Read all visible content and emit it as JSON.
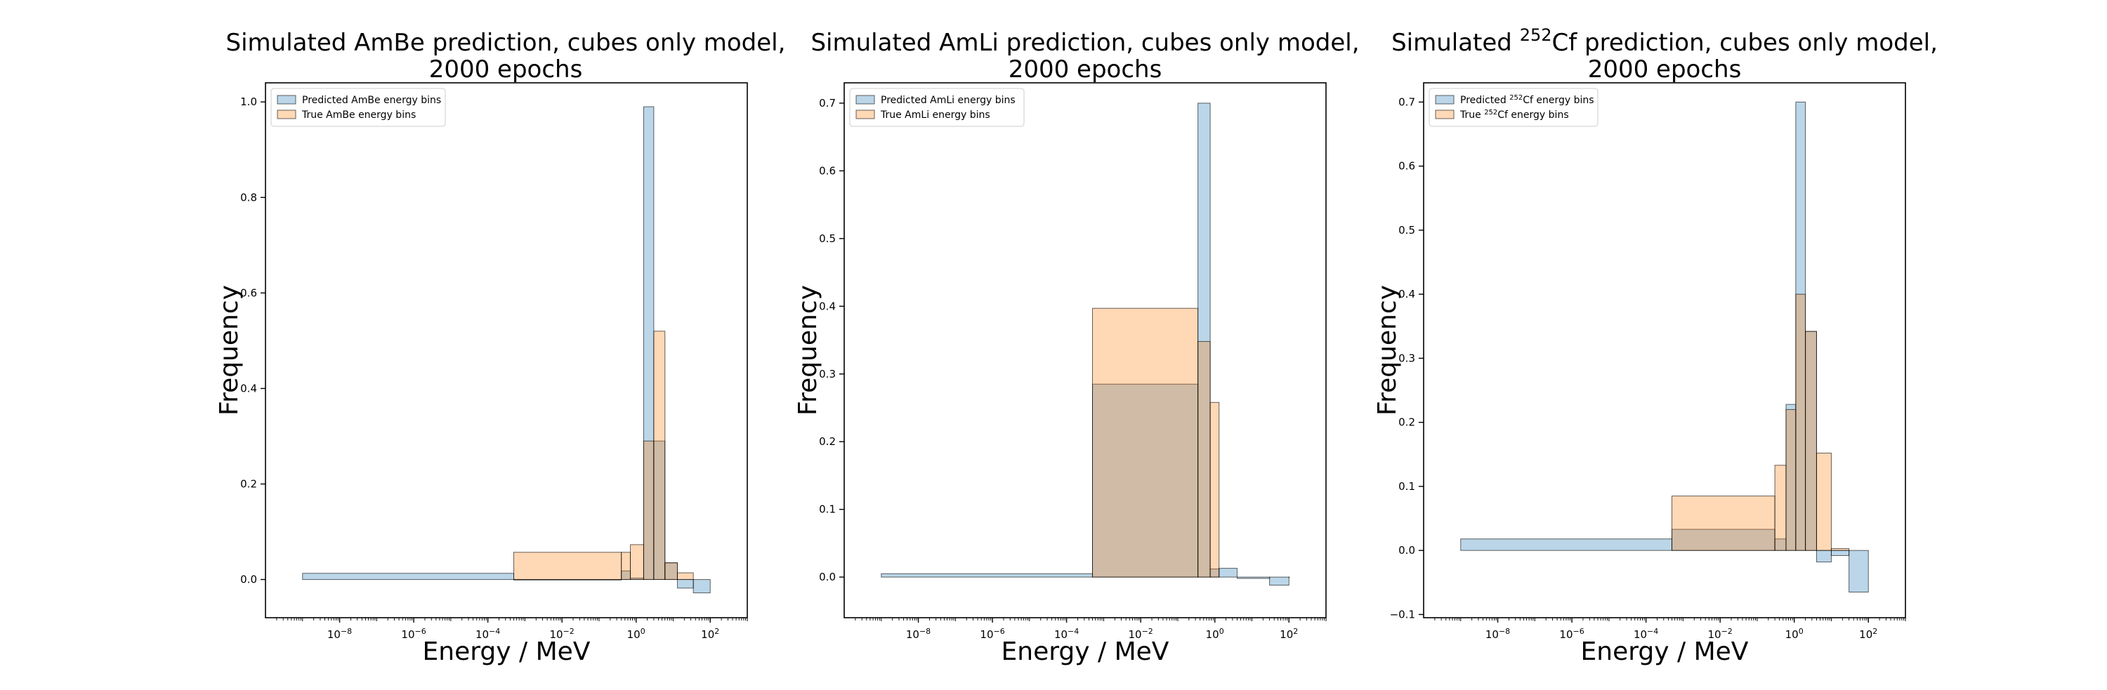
{
  "chart_data": [
    {
      "type": "bar",
      "title_line1": "Simulated AmBe prediction, cubes only model,",
      "title_line2": "2000 epochs",
      "xlabel": "Energy / MeV",
      "ylabel": "Frequency",
      "xscale": "log",
      "xlim": [
        1e-10,
        1000.0
      ],
      "ylim": [
        -0.08,
        1.04
      ],
      "yticks": [
        "0.0",
        "0.2",
        "0.4",
        "0.6",
        "0.8",
        "1.0"
      ],
      "xticks": [
        "-8",
        "-6",
        "-4",
        "-2",
        "0",
        "2"
      ],
      "legend_placement": "top-left",
      "series": [
        {
          "name": "Predicted AmBe energy bins",
          "color": "#1f77b4",
          "bins": [
            [
              1e-09,
              0.0005,
              0.013
            ],
            [
              0.0005,
              0.4,
              0.0
            ],
            [
              0.4,
              0.7,
              0.018
            ],
            [
              0.7,
              1.6,
              0.003
            ],
            [
              1.6,
              3.0,
              0.99
            ],
            [
              3.0,
              6.0,
              0.29
            ],
            [
              6.0,
              13.0,
              0.035
            ],
            [
              13.0,
              35.0,
              -0.018
            ],
            [
              35.0,
              100.0,
              -0.028
            ]
          ]
        },
        {
          "name": "True AmBe energy bins",
          "color": "#ff7f0e",
          "bins": [
            [
              0.0005,
              0.4,
              0.057
            ],
            [
              0.4,
              0.7,
              0.057
            ],
            [
              0.7,
              1.6,
              0.073
            ],
            [
              1.6,
              3.0,
              0.29
            ],
            [
              3.0,
              6.0,
              0.52
            ],
            [
              6.0,
              13.0,
              0.035
            ],
            [
              13.0,
              35.0,
              0.014
            ]
          ]
        }
      ]
    },
    {
      "type": "bar",
      "title_line1": "Simulated AmLi prediction, cubes only model,",
      "title_line2": "2000 epochs",
      "xlabel": "Energy / MeV",
      "ylabel": "Frequency",
      "xscale": "log",
      "xlim": [
        1e-10,
        1000.0
      ],
      "ylim": [
        -0.06,
        0.73
      ],
      "yticks": [
        "0.0",
        "0.1",
        "0.2",
        "0.3",
        "0.4",
        "0.5",
        "0.6",
        "0.7"
      ],
      "xticks": [
        "-8",
        "-6",
        "-4",
        "-2",
        "0",
        "2"
      ],
      "legend_placement": "top-left",
      "series": [
        {
          "name": "Predicted AmLi energy bins",
          "color": "#1f77b4",
          "bins": [
            [
              1e-09,
              0.0005,
              0.005
            ],
            [
              0.0005,
              0.35,
              0.285
            ],
            [
              0.35,
              0.75,
              0.7
            ],
            [
              0.75,
              1.3,
              0.012
            ],
            [
              1.3,
              4.0,
              0.013
            ],
            [
              4.0,
              30.0,
              -0.002
            ],
            [
              30.0,
              100.0,
              -0.012
            ],
            [
              100.0,
              101.0,
              0.0
            ]
          ]
        },
        {
          "name": "True AmLi energy bins",
          "color": "#ff7f0e",
          "bins": [
            [
              0.0005,
              0.35,
              0.397
            ],
            [
              0.35,
              0.75,
              0.348
            ],
            [
              0.75,
              1.3,
              0.258
            ]
          ]
        }
      ]
    },
    {
      "type": "bar",
      "title_line1_pre": "Simulated ",
      "title_line1_sup": "252",
      "title_line1_post": "Cf prediction, cubes only model,",
      "title_line2": "2000 epochs",
      "xlabel": "Energy / MeV",
      "ylabel": "Frequency",
      "xscale": "log",
      "xlim": [
        1e-10,
        1000.0
      ],
      "ylim": [
        -0.105,
        0.73
      ],
      "yticks": [
        "−0.1",
        "0.0",
        "0.1",
        "0.2",
        "0.3",
        "0.4",
        "0.5",
        "0.6",
        "0.7"
      ],
      "xticks": [
        "-8",
        "-6",
        "-4",
        "-2",
        "0",
        "2"
      ],
      "legend_placement": "top-left",
      "series": [
        {
          "name_pre": "Predicted ",
          "name_sup": "252",
          "name_post": "Cf energy bins",
          "color": "#1f77b4",
          "bins": [
            [
              1e-09,
              0.0005,
              0.018
            ],
            [
              0.0005,
              0.3,
              0.033
            ],
            [
              0.3,
              0.6,
              0.018
            ],
            [
              0.6,
              1.1,
              0.228
            ],
            [
              1.1,
              2.0,
              0.7
            ],
            [
              2.0,
              4.0,
              0.342
            ],
            [
              4.0,
              10.0,
              -0.018
            ],
            [
              10.0,
              30.0,
              -0.008
            ],
            [
              30.0,
              100.0,
              -0.065
            ]
          ]
        },
        {
          "name_pre": "True ",
          "name_sup": "252",
          "name_post": "Cf energy bins",
          "color": "#ff7f0e",
          "bins": [
            [
              0.0005,
              0.3,
              0.085
            ],
            [
              0.3,
              0.6,
              0.133
            ],
            [
              0.6,
              1.1,
              0.22
            ],
            [
              1.1,
              2.0,
              0.4
            ],
            [
              2.0,
              4.0,
              0.342
            ],
            [
              4.0,
              10.0,
              0.152
            ],
            [
              10.0,
              30.0,
              0.003
            ]
          ]
        }
      ]
    }
  ]
}
